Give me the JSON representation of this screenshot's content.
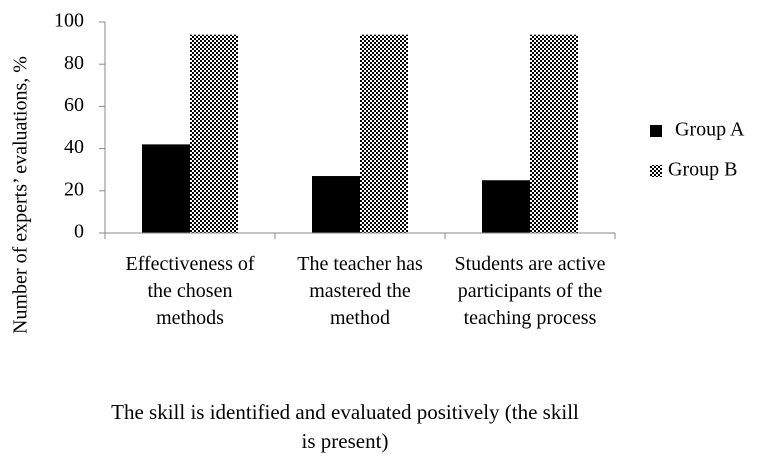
{
  "chart_data": {
    "type": "bar",
    "categories": [
      "Effectiveness of the chosen methods",
      "The teacher has mastered the method",
      "Students are active participants of the teaching process"
    ],
    "series": [
      {
        "name": "Group A",
        "color": "#000000",
        "values": [
          42,
          27,
          25
        ]
      },
      {
        "name": "Group B",
        "color": "pattern-dots",
        "values": [
          94,
          94,
          94
        ]
      }
    ],
    "ylabel": "Number of experts’ evaluations, %",
    "xlabel": "The skill is identified and evaluated positively (the skill is present)",
    "ylim": [
      0,
      100
    ],
    "yticks": [
      0,
      20,
      40,
      60,
      80,
      100
    ],
    "grid": false,
    "legend": "right"
  }
}
